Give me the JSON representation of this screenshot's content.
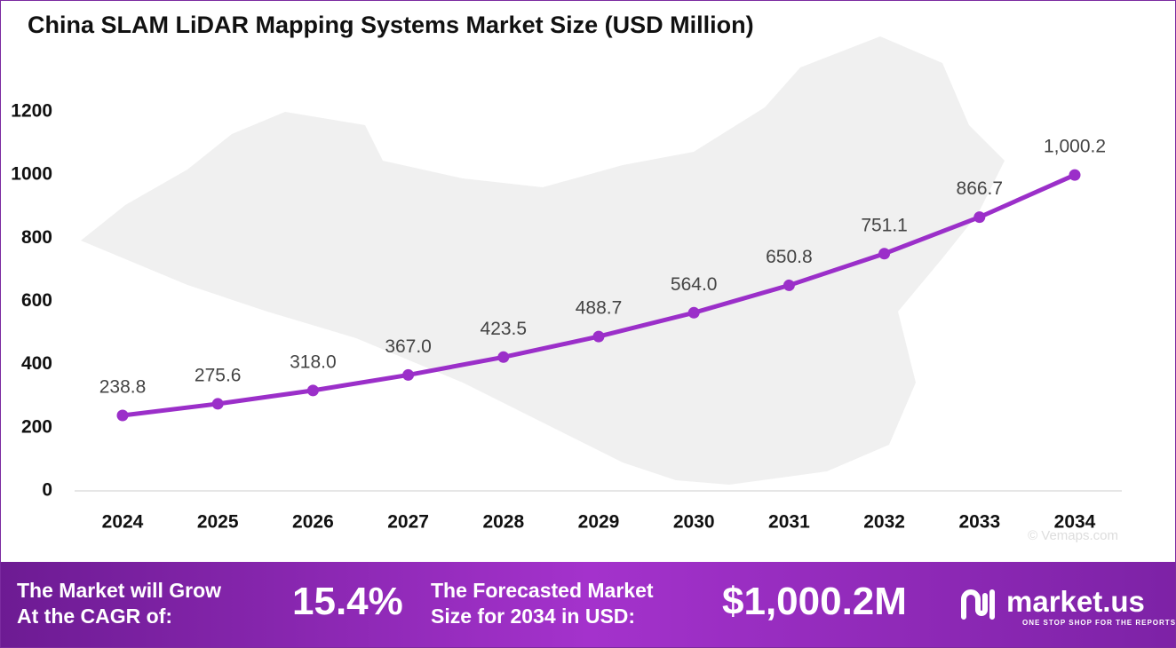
{
  "chart_data": {
    "type": "line",
    "title": "China SLAM LiDAR Mapping Systems Market Size (USD Million)",
    "categories": [
      "2024",
      "2025",
      "2026",
      "2027",
      "2028",
      "2029",
      "2030",
      "2031",
      "2032",
      "2033",
      "2034"
    ],
    "series": [
      {
        "color": "#9b2fc9",
        "values": [
          238.8,
          275.6,
          318.0,
          367.0,
          423.5,
          488.7,
          564.0,
          650.8,
          751.1,
          866.7,
          1000.2
        ],
        "value_labels": [
          "238.8",
          "275.6",
          "318.0",
          "367.0",
          "423.5",
          "488.7",
          "564.0",
          "650.8",
          "751.1",
          "866.7",
          "1,000.2"
        ]
      }
    ],
    "ylim": [
      0,
      1200
    ],
    "yticks": [
      0,
      200,
      400,
      600,
      800,
      1000,
      1200
    ],
    "watermark": "© Vemaps.com"
  },
  "footer": {
    "cagr_text": [
      "The Market will Grow",
      "At the CAGR of:"
    ],
    "cagr_value": "15.4%",
    "forecast_text": [
      "The Forecasted Market",
      "Size for 2034 in USD:"
    ],
    "forecast_value": "$1,000.2M",
    "brand": "market.us",
    "tagline": "ONE STOP SHOP FOR THE REPORTS"
  }
}
